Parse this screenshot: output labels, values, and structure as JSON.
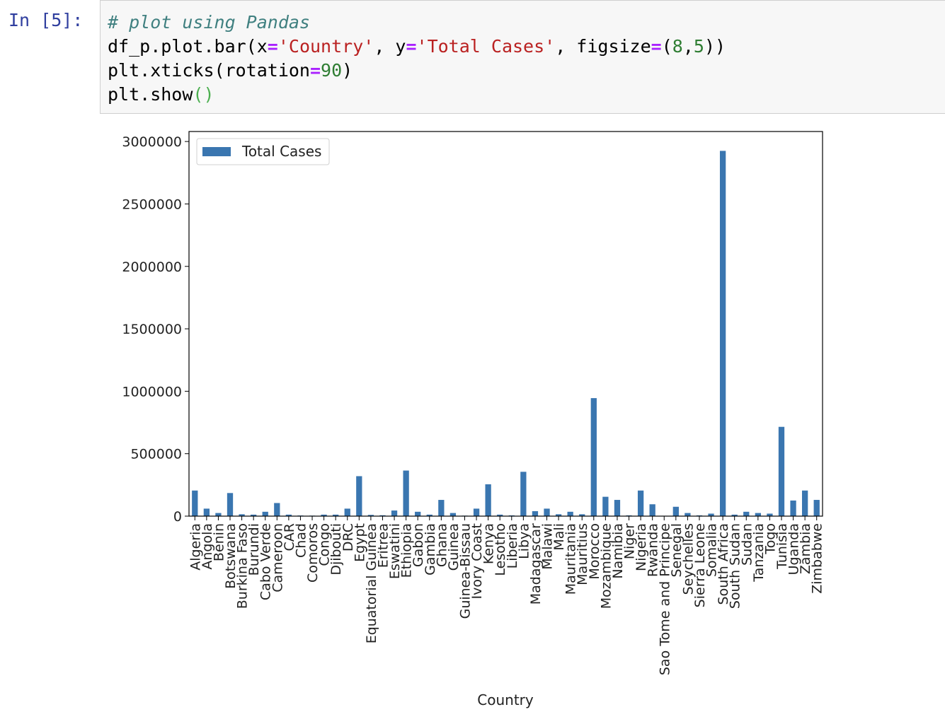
{
  "cell": {
    "prompt": "In [5]:",
    "code_lines": [
      "# plot using Pandas",
      "df_p.plot.bar(x='Country', y='Total Cases', figsize=(8,5))",
      "plt.xticks(rotation=90)",
      "plt.show()"
    ]
  },
  "colors": {
    "bar": "#3a76b0",
    "prompt": "#303f9f",
    "cell_bg": "#f7f7f7"
  },
  "chart_data": {
    "type": "bar",
    "xlabel": "Country",
    "ylabel": "",
    "legend": {
      "entries": [
        "Total Cases"
      ],
      "placement": "top-left"
    },
    "ylim": [
      0,
      3080000
    ],
    "yticks": [
      0,
      500000,
      1000000,
      1500000,
      2000000,
      2500000,
      3000000
    ],
    "ytick_labels": [
      "0",
      "500000",
      "1000000",
      "1500000",
      "2000000",
      "2500000",
      "3000000"
    ],
    "grid": false,
    "categories": [
      "Algeria",
      "Angola",
      "Benin",
      "Botswana",
      "Burkina Faso",
      "Burundi",
      "Cabo Verde",
      "Cameroon",
      "CAR",
      "Chad",
      "Comoros",
      "Congo",
      "Djibouti",
      "DRC",
      "Egypt",
      "Equatorial Guinea",
      "Eritrea",
      "Eswatini",
      "Ethiopia",
      "Gabon",
      "Gambia",
      "Ghana",
      "Guinea",
      "Guinea-Bissau",
      "Ivory Coast",
      "Kenya",
      "Lesotho",
      "Liberia",
      "Libya",
      "Madagascar",
      "Malawi",
      "Mali",
      "Mauritania",
      "Mauritius",
      "Morocco",
      "Mozambique",
      "Namibia",
      "Niger",
      "Nigeria",
      "Rwanda",
      "Sao Tome and Principe",
      "Senegal",
      "Seychelles",
      "Sierra Leone",
      "Somalia",
      "South Africa",
      "South Sudan",
      "Sudan",
      "Tanzania",
      "Togo",
      "Tunisia",
      "Uganda",
      "Zambia",
      "Zimbabwe"
    ],
    "series": [
      {
        "name": "Total Cases",
        "values": [
          205000,
          60000,
          25000,
          185000,
          15000,
          12000,
          35000,
          105000,
          12000,
          5000,
          4000,
          12000,
          12000,
          60000,
          320000,
          10000,
          7000,
          45000,
          365000,
          35000,
          12000,
          130000,
          25000,
          4000,
          60000,
          255000,
          12000,
          6000,
          355000,
          40000,
          60000,
          15000,
          35000,
          15000,
          945000,
          155000,
          130000,
          6000,
          205000,
          95000,
          3000,
          75000,
          25000,
          6000,
          20000,
          2925000,
          12000,
          35000,
          25000,
          20000,
          715000,
          125000,
          205000,
          130000
        ]
      }
    ]
  }
}
